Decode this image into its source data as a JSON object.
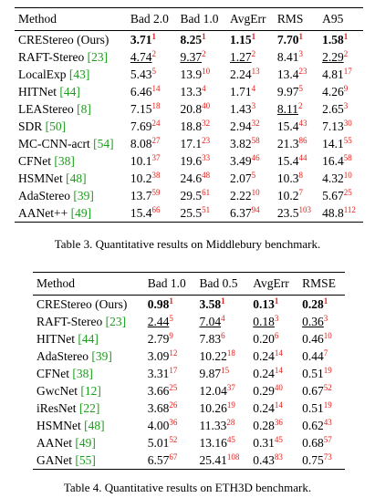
{
  "table3": {
    "headers": [
      "Method",
      "Bad 2.0",
      "Bad 1.0",
      "AvgErr",
      "RMS",
      "A95"
    ],
    "rows": [
      {
        "name": "CREStereo (Ours)",
        "cite": null,
        "cells": [
          {
            "value": "3.71",
            "rank": "1",
            "style": "bold"
          },
          {
            "value": "8.25",
            "rank": "1",
            "style": "bold"
          },
          {
            "value": "1.15",
            "rank": "1",
            "style": "bold"
          },
          {
            "value": "7.70",
            "rank": "1",
            "style": "bold"
          },
          {
            "value": "1.58",
            "rank": "1",
            "style": "bold"
          }
        ]
      },
      {
        "name": "RAFT-Stereo",
        "cite": "[23]",
        "cells": [
          {
            "value": "4.74",
            "rank": "2",
            "style": "underline"
          },
          {
            "value": "9.37",
            "rank": "2",
            "style": "underline"
          },
          {
            "value": "1.27",
            "rank": "2",
            "style": "underline"
          },
          {
            "value": "8.41",
            "rank": "3"
          },
          {
            "value": "2.29",
            "rank": "2",
            "style": "underline"
          }
        ]
      },
      {
        "name": "LocalExp",
        "cite": "[43]",
        "cells": [
          {
            "value": "5.43",
            "rank": "5"
          },
          {
            "value": "13.9",
            "rank": "10"
          },
          {
            "value": "2.24",
            "rank": "13"
          },
          {
            "value": "13.4",
            "rank": "23"
          },
          {
            "value": "4.81",
            "rank": "17"
          }
        ]
      },
      {
        "name": "HITNet",
        "cite": "[44]",
        "cells": [
          {
            "value": "6.46",
            "rank": "14"
          },
          {
            "value": "13.3",
            "rank": "4"
          },
          {
            "value": "1.71",
            "rank": "4"
          },
          {
            "value": "9.97",
            "rank": "5"
          },
          {
            "value": "4.26",
            "rank": "9"
          }
        ]
      },
      {
        "name": "LEAStereo",
        "cite": "[8]",
        "cells": [
          {
            "value": "7.15",
            "rank": "18"
          },
          {
            "value": "20.8",
            "rank": "40"
          },
          {
            "value": "1.43",
            "rank": "3"
          },
          {
            "value": "8.11",
            "rank": "2",
            "style": "underline"
          },
          {
            "value": "2.65",
            "rank": "3"
          }
        ]
      },
      {
        "name": "SDR",
        "cite": "[50]",
        "cells": [
          {
            "value": "7.69",
            "rank": "24"
          },
          {
            "value": "18.8",
            "rank": "32"
          },
          {
            "value": "2.94",
            "rank": "32"
          },
          {
            "value": "15.4",
            "rank": "43"
          },
          {
            "value": "7.13",
            "rank": "30"
          }
        ]
      },
      {
        "name": "MC-CNN-acrt",
        "cite": "[54]",
        "cells": [
          {
            "value": "8.08",
            "rank": "27"
          },
          {
            "value": "17.1",
            "rank": "23"
          },
          {
            "value": "3.82",
            "rank": "58"
          },
          {
            "value": "21.3",
            "rank": "86"
          },
          {
            "value": "14.1",
            "rank": "55"
          }
        ]
      },
      {
        "name": "CFNet",
        "cite": "[38]",
        "cells": [
          {
            "value": "10.1",
            "rank": "37"
          },
          {
            "value": "19.6",
            "rank": "33"
          },
          {
            "value": "3.49",
            "rank": "46"
          },
          {
            "value": "15.4",
            "rank": "44"
          },
          {
            "value": "16.4",
            "rank": "58"
          }
        ]
      },
      {
        "name": "HSMNet",
        "cite": "[48]",
        "cells": [
          {
            "value": "10.2",
            "rank": "38"
          },
          {
            "value": "24.6",
            "rank": "48"
          },
          {
            "value": "2.07",
            "rank": "5"
          },
          {
            "value": "10.3",
            "rank": "8"
          },
          {
            "value": "4.32",
            "rank": "10"
          }
        ]
      },
      {
        "name": "AdaStereo",
        "cite": "[39]",
        "cells": [
          {
            "value": "13.7",
            "rank": "59"
          },
          {
            "value": "29.5",
            "rank": "61"
          },
          {
            "value": "2.22",
            "rank": "10"
          },
          {
            "value": "10.2",
            "rank": "7"
          },
          {
            "value": "5.67",
            "rank": "25"
          }
        ]
      },
      {
        "name": "AANet++",
        "cite": "[49]",
        "cells": [
          {
            "value": "15.4",
            "rank": "66"
          },
          {
            "value": "25.5",
            "rank": "51"
          },
          {
            "value": "6.37",
            "rank": "94"
          },
          {
            "value": "23.5",
            "rank": "103"
          },
          {
            "value": "48.8",
            "rank": "112"
          }
        ]
      }
    ],
    "caption": "Table 3. Quantitative results on Middlebury benchmark."
  },
  "table4": {
    "headers": [
      "Method",
      "Bad 1.0",
      "Bad 0.5",
      "AvgErr",
      "RMSE"
    ],
    "rows": [
      {
        "name": "CREStereo (Ours)",
        "cite": null,
        "cells": [
          {
            "value": "0.98",
            "rank": "1",
            "style": "bold"
          },
          {
            "value": "3.58",
            "rank": "1",
            "style": "bold"
          },
          {
            "value": "0.13",
            "rank": "1",
            "style": "bold"
          },
          {
            "value": "0.28",
            "rank": "1",
            "style": "bold"
          }
        ]
      },
      {
        "name": "RAFT-Stereo",
        "cite": "[23]",
        "cells": [
          {
            "value": "2.44",
            "rank": "5",
            "style": "underline"
          },
          {
            "value": "7.04",
            "rank": "4",
            "style": "underline"
          },
          {
            "value": "0.18",
            "rank": "3",
            "style": "underline"
          },
          {
            "value": "0.36",
            "rank": "3",
            "style": "underline"
          }
        ]
      },
      {
        "name": "HITNet",
        "cite": "[44]",
        "cells": [
          {
            "value": "2.79",
            "rank": "9"
          },
          {
            "value": "7.83",
            "rank": "6"
          },
          {
            "value": "0.20",
            "rank": "6"
          },
          {
            "value": "0.46",
            "rank": "10"
          }
        ]
      },
      {
        "name": "AdaStereo",
        "cite": "[39]",
        "cells": [
          {
            "value": "3.09",
            "rank": "12"
          },
          {
            "value": "10.22",
            "rank": "18"
          },
          {
            "value": "0.24",
            "rank": "14"
          },
          {
            "value": "0.44",
            "rank": "7"
          }
        ]
      },
      {
        "name": "CFNet",
        "cite": "[38]",
        "cells": [
          {
            "value": "3.31",
            "rank": "17"
          },
          {
            "value": "9.87",
            "rank": "15"
          },
          {
            "value": "0.24",
            "rank": "14"
          },
          {
            "value": "0.51",
            "rank": "19"
          }
        ]
      },
      {
        "name": "GwcNet",
        "cite": "[12]",
        "cells": [
          {
            "value": "3.66",
            "rank": "25"
          },
          {
            "value": "12.04",
            "rank": "37"
          },
          {
            "value": "0.29",
            "rank": "40"
          },
          {
            "value": "0.67",
            "rank": "52"
          }
        ]
      },
      {
        "name": "iResNet",
        "cite": "[22]",
        "cells": [
          {
            "value": "3.68",
            "rank": "26"
          },
          {
            "value": "10.26",
            "rank": "19"
          },
          {
            "value": "0.24",
            "rank": "14"
          },
          {
            "value": "0.51",
            "rank": "19"
          }
        ]
      },
      {
        "name": "HSMNet",
        "cite": "[48]",
        "cells": [
          {
            "value": "4.00",
            "rank": "36"
          },
          {
            "value": "11.33",
            "rank": "28"
          },
          {
            "value": "0.28",
            "rank": "36"
          },
          {
            "value": "0.62",
            "rank": "43"
          }
        ]
      },
      {
        "name": "AANet",
        "cite": "[49]",
        "cells": [
          {
            "value": "5.01",
            "rank": "52"
          },
          {
            "value": "13.16",
            "rank": "45"
          },
          {
            "value": "0.31",
            "rank": "45"
          },
          {
            "value": "0.68",
            "rank": "57"
          }
        ]
      },
      {
        "name": "GANet",
        "cite": "[55]",
        "cells": [
          {
            "value": "6.57",
            "rank": "67"
          },
          {
            "value": "25.41",
            "rank": "108"
          },
          {
            "value": "0.43",
            "rank": "83"
          },
          {
            "value": "0.75",
            "rank": "73"
          }
        ]
      }
    ],
    "caption": "Table 4. Quantitative results on ETH3D benchmark."
  }
}
